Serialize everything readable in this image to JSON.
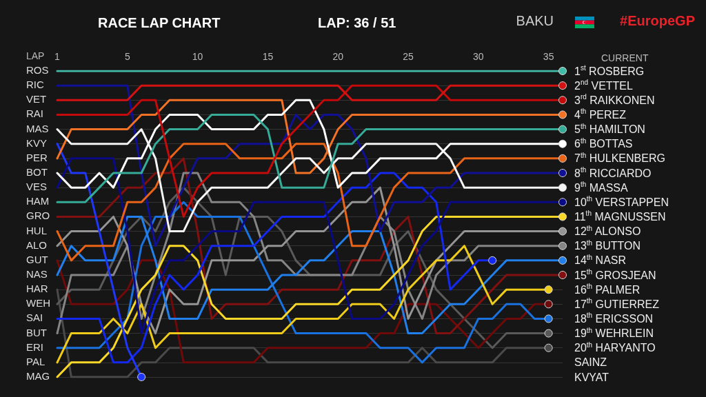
{
  "chart_data": {
    "type": "line",
    "title": "RACE LAP CHART",
    "subtitle": "LAP: 36 / 51",
    "xlabel": "LAP",
    "ylabel": "CURRENT",
    "annotations": [
      "BAKU",
      "#EuropeGP",
      "ROS",
      "RIC",
      "VET",
      "RAI",
      "MAS",
      "KVY",
      "PER",
      "BOT",
      "VES",
      "HAM",
      "GRO",
      "HUL",
      "ALO",
      "GUT",
      "NAS",
      "HAR",
      "WEH",
      "SAI",
      "BUT",
      "ERI",
      "PAL",
      "MAG"
    ],
    "categories": [
      "1",
      null,
      null,
      null,
      null,
      "5",
      null,
      null,
      null,
      null,
      "10",
      null,
      null,
      null,
      null,
      "15",
      null,
      null,
      null,
      null,
      "20",
      null,
      null,
      null,
      null,
      "25",
      null,
      null,
      null,
      null,
      "30",
      null,
      null,
      null,
      null,
      "35",
      null
    ],
    "ylim": [
      22,
      1
    ],
    "yticks": [
      {
        "value": 1,
        "label": "1$^{st}$ ROSBERG"
      },
      {
        "value": 2,
        "label": "2$^{nd}$ VETTEL"
      },
      {
        "value": 3,
        "label": "3$^{rd}$ RAIKKONEN"
      },
      {
        "value": 4,
        "label": "4$^{th}$ PEREZ"
      },
      {
        "value": 5,
        "label": "5$^{th}$ HAMILTON"
      },
      {
        "value": 6,
        "label": "6$^{th}$ BOTTAS"
      },
      {
        "value": 7,
        "label": "7$^{th}$ HULKENBERG"
      },
      {
        "value": 8,
        "label": "8$^{th}$ RICCIARDO"
      },
      {
        "value": 9,
        "label": "9$^{th}$ MASSA"
      },
      {
        "value": 10,
        "label": "10$^{th}$ VERSTAPPEN"
      },
      {
        "value": 11,
        "label": "11$^{th}$ MAGNUSSEN"
      },
      {
        "value": 12,
        "label": "12$^{th}$ ALONSO"
      },
      {
        "value": 13,
        "label": "13$^{th}$ BUTTON"
      },
      {
        "value": 14,
        "label": "14$^{th}$ NASR"
      },
      {
        "value": 15,
        "label": "15$^{th}$ GROSJEAN"
      },
      {
        "value": 16,
        "label": "16$^{th}$ PALMER"
      },
      {
        "value": 17,
        "label": "17$^{th}$ GUTIERREZ"
      },
      {
        "value": 18,
        "label": "18$^{th}$ ERICSSON"
      },
      {
        "value": 19,
        "label": "19$^{th}$ WEHRLEIN"
      },
      {
        "value": 20,
        "label": "20$^{th}$ HARYANTO"
      },
      {
        "value": 21,
        "label": "SAINZ"
      },
      {
        "value": 22,
        "label": "KVYAT"
      }
    ],
    "grid": "y",
    "line_style": "solid",
    "series": [
      {
        "color": "#4a4a4a",
        "values": [
          16,
          22,
          22,
          22,
          22,
          22,
          21,
          21,
          20,
          20,
          20,
          20,
          20,
          20,
          20,
          21,
          21,
          21,
          21,
          21,
          21,
          21,
          21,
          21,
          21,
          21,
          20,
          21,
          21,
          21,
          21,
          21,
          20,
          20,
          20,
          20,
          null
        ]
      },
      {
        "color": "#5a5a5a",
        "values": [
          17,
          16,
          16,
          16,
          14,
          12,
          11,
          12,
          10,
          9,
          10,
          11,
          15,
          11,
          11,
          11,
          12,
          14,
          15,
          15,
          15,
          15,
          15,
          15,
          13,
          12,
          14,
          16,
          17,
          18,
          19,
          20,
          19,
          19,
          19,
          19,
          null
        ]
      },
      {
        "color": "#700a0a",
        "values": [
          14,
          17,
          17,
          17,
          17,
          16,
          14,
          14,
          16,
          21,
          21,
          21,
          21,
          21,
          21,
          20,
          20,
          20,
          20,
          20,
          20,
          20,
          20,
          19,
          19,
          17,
          17,
          17,
          18,
          19,
          20,
          19,
          18,
          18,
          17,
          17,
          null
        ]
      },
      {
        "color": "#821010",
        "values": [
          11,
          11,
          11,
          11,
          10,
          9,
          9,
          8,
          8,
          7,
          12,
          18,
          17,
          17,
          17,
          17,
          16,
          16,
          16,
          16,
          16,
          14,
          14,
          14,
          12,
          11,
          15,
          19,
          19,
          18,
          17,
          16,
          15,
          15,
          15,
          15,
          15
        ]
      },
      {
        "color": "#858585",
        "values": [
          19,
          15,
          15,
          15,
          15,
          13,
          18,
          15,
          12,
          8,
          8,
          10,
          10,
          10,
          11,
          14,
          14,
          15,
          15,
          15,
          15,
          15,
          13,
          11,
          12,
          16,
          18,
          15,
          14,
          14,
          13,
          13,
          13,
          13,
          13,
          13,
          13
        ]
      },
      {
        "color": "#959595",
        "values": [
          13,
          12,
          12,
          12,
          11,
          13,
          17,
          19,
          16,
          17,
          17,
          14,
          14,
          14,
          14,
          13,
          13,
          12,
          12,
          12,
          11,
          10,
          10,
          9,
          13,
          18,
          16,
          14,
          13,
          12,
          12,
          12,
          12,
          12,
          12,
          12,
          12
        ]
      },
      {
        "color": "#1a72e0",
        "values": [
          20,
          20,
          20,
          20,
          19,
          18,
          13,
          11,
          11,
          10,
          11,
          11,
          11,
          11,
          13,
          15,
          17,
          19,
          19,
          19,
          19,
          19,
          19,
          20,
          20,
          20,
          21,
          20,
          20,
          20,
          18,
          18,
          17,
          17,
          18,
          18,
          null
        ]
      },
      {
        "color": "#2280ec",
        "values": [
          15,
          13,
          14,
          14,
          14,
          11,
          11,
          14,
          18,
          18,
          18,
          16,
          16,
          16,
          16,
          16,
          15,
          15,
          14,
          14,
          13,
          12,
          12,
          12,
          15,
          19,
          19,
          18,
          17,
          17,
          16,
          15,
          14,
          14,
          14,
          14,
          14
        ]
      },
      {
        "color": "#f0cc1a",
        "values": [
          21,
          19,
          19,
          19,
          18,
          19,
          17,
          20,
          19,
          19,
          19,
          19,
          19,
          19,
          19,
          19,
          19,
          18,
          18,
          18,
          18,
          17,
          17,
          17,
          18,
          16,
          15,
          14,
          14,
          13,
          15,
          17,
          16,
          16,
          16,
          16,
          null
        ]
      },
      {
        "color": "#fad828",
        "values": [
          22,
          21,
          21,
          21,
          20,
          18,
          16,
          15,
          13,
          13,
          14,
          17,
          18,
          18,
          18,
          18,
          18,
          17,
          17,
          17,
          17,
          16,
          16,
          16,
          15,
          14,
          12,
          11,
          11,
          11,
          11,
          11,
          11,
          11,
          11,
          11,
          11
        ]
      },
      {
        "color": "#1428f0",
        "values": [
          18,
          18,
          18,
          18,
          21,
          21,
          20,
          17,
          15,
          16,
          15,
          13,
          13,
          13,
          13,
          12,
          11,
          11,
          11,
          11,
          10,
          9,
          9,
          8,
          8,
          9,
          9,
          10,
          16,
          15,
          14,
          14,
          null,
          null,
          null,
          null,
          null
        ]
      },
      {
        "color": "#2036f8",
        "values": [
          6,
          8,
          8,
          12,
          16,
          20,
          22,
          null,
          null,
          null,
          null,
          null,
          null,
          null,
          null,
          null,
          null,
          null,
          null,
          null,
          null,
          null,
          null,
          null,
          null,
          null,
          null,
          null,
          null,
          null,
          null,
          null,
          null,
          null,
          null,
          null,
          null
        ]
      },
      {
        "color": "#0a0a86",
        "values": [
          9,
          7,
          7,
          7,
          7,
          12,
          19,
          16,
          14,
          14,
          13,
          12,
          12,
          12,
          10,
          10,
          10,
          10,
          10,
          10,
          14,
          18,
          18,
          18,
          17,
          15,
          13,
          12,
          10,
          10,
          10,
          10,
          10,
          10,
          10,
          10,
          10
        ]
      },
      {
        "color": "#101096",
        "values": [
          2,
          2,
          2,
          2,
          2,
          2,
          8,
          13,
          11,
          9,
          7,
          7,
          7,
          6,
          6,
          6,
          6,
          4,
          5,
          4,
          4,
          5,
          7,
          12,
          10,
          10,
          10,
          9,
          9,
          8,
          8,
          8,
          8,
          8,
          8,
          8,
          8
        ]
      },
      {
        "color": "#ea6418",
        "values": [
          12,
          14,
          13,
          13,
          13,
          10,
          10,
          9,
          7,
          6,
          6,
          6,
          6,
          7,
          7,
          7,
          7,
          6,
          6,
          6,
          8,
          13,
          13,
          11,
          9,
          8,
          8,
          8,
          8,
          7,
          7,
          7,
          7,
          7,
          7,
          7,
          7
        ]
      },
      {
        "color": "#f47226",
        "values": [
          7,
          5,
          5,
          5,
          5,
          5,
          4,
          4,
          3,
          3,
          3,
          3,
          3,
          3,
          3,
          3,
          3,
          8,
          8,
          7,
          5,
          4,
          4,
          4,
          4,
          4,
          4,
          4,
          4,
          4,
          4,
          4,
          4,
          4,
          4,
          4,
          4
        ]
      },
      {
        "color": "#f4f4f4",
        "values": [
          5,
          6,
          6,
          6,
          6,
          6,
          5,
          7,
          12,
          12,
          10,
          9,
          9,
          9,
          9,
          9,
          8,
          7,
          7,
          8,
          7,
          7,
          6,
          6,
          6,
          6,
          6,
          6,
          7,
          9,
          9,
          9,
          9,
          9,
          9,
          9,
          9
        ]
      },
      {
        "color": "#ffffff",
        "values": [
          8,
          9,
          9,
          8,
          9,
          7,
          7,
          5,
          4,
          4,
          4,
          5,
          5,
          5,
          5,
          4,
          4,
          3,
          3,
          5,
          9,
          8,
          8,
          7,
          7,
          7,
          7,
          7,
          6,
          6,
          6,
          6,
          6,
          6,
          6,
          6,
          6
        ]
      },
      {
        "color": "#36ac98",
        "values": [
          10,
          10,
          10,
          9,
          8,
          8,
          8,
          6,
          5,
          5,
          5,
          4,
          4,
          4,
          4,
          5,
          9,
          9,
          9,
          9,
          6,
          6,
          5,
          5,
          5,
          5,
          5,
          5,
          5,
          5,
          5,
          5,
          5,
          5,
          5,
          5,
          5
        ]
      },
      {
        "color": "#c40a0a",
        "values": [
          4,
          4,
          4,
          4,
          4,
          4,
          3,
          3,
          7,
          11,
          9,
          8,
          8,
          8,
          8,
          8,
          6,
          5,
          4,
          3,
          3,
          2,
          2,
          2,
          2,
          2,
          2,
          2,
          3,
          3,
          3,
          3,
          3,
          3,
          3,
          3,
          3
        ]
      },
      {
        "color": "#d41212",
        "values": [
          3,
          3,
          3,
          3,
          3,
          3,
          2,
          2,
          2,
          2,
          2,
          2,
          2,
          2,
          2,
          2,
          2,
          2,
          2,
          2,
          2,
          3,
          3,
          3,
          3,
          3,
          3,
          3,
          2,
          2,
          2,
          2,
          2,
          2,
          2,
          2,
          2
        ]
      },
      {
        "color": "#42bca8",
        "values": [
          1,
          1,
          1,
          1,
          1,
          1,
          1,
          1,
          1,
          1,
          1,
          1,
          1,
          1,
          1,
          1,
          1,
          1,
          1,
          1,
          1,
          1,
          1,
          1,
          1,
          1,
          1,
          1,
          1,
          1,
          1,
          1,
          1,
          1,
          1,
          1,
          1
        ]
      }
    ]
  }
}
